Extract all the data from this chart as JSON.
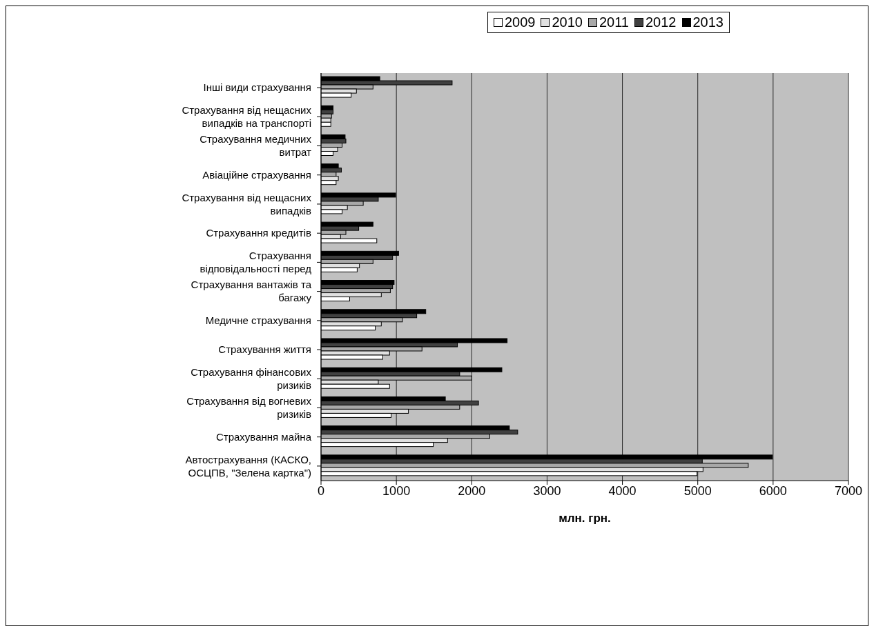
{
  "chart_data": {
    "type": "bar",
    "orientation": "horizontal",
    "xlabel": "млн. грн.",
    "categories": [
      "Інші види страхування",
      "Страхування від нещасних випадків на транспорті",
      "Страхування медичних витрат",
      "Авіаційне страхування",
      "Страхування від нещасних випадків",
      "Страхування кредитів",
      "Страхування відповідальності перед",
      "Страхування вантажів та багажу",
      "Медичне страхування",
      "Страхування життя",
      "Страхування фінансових ризиків",
      "Страхування від вогневих ризиків",
      "Страхування майна",
      "Автострахування (КАСКО, ОСЦПВ, \"Зелена картка\")"
    ],
    "series": [
      {
        "name": "2009",
        "color": "#ffffff",
        "values": [
          400,
          130,
          160,
          200,
          280,
          740,
          480,
          380,
          720,
          820,
          910,
          930,
          1490,
          4990
        ]
      },
      {
        "name": "2010",
        "color": "#e0e0e0",
        "values": [
          470,
          130,
          220,
          230,
          350,
          260,
          510,
          800,
          800,
          910,
          760,
          1160,
          1680,
          5070
        ]
      },
      {
        "name": "2011",
        "color": "#a8a8a8",
        "values": [
          690,
          140,
          280,
          200,
          560,
          330,
          690,
          920,
          1080,
          1340,
          2000,
          1840,
          2240,
          5670
        ]
      },
      {
        "name": "2012",
        "color": "#404040",
        "values": [
          1740,
          160,
          330,
          270,
          760,
          500,
          950,
          950,
          1270,
          1810,
          1840,
          2090,
          2610,
          5060
        ]
      },
      {
        "name": "2013",
        "color": "#000000",
        "values": [
          780,
          160,
          320,
          230,
          990,
          690,
          1030,
          970,
          1390,
          2470,
          2400,
          1650,
          2500,
          5990
        ]
      }
    ],
    "xlim": [
      0,
      7000
    ],
    "xticks": [
      0,
      1000,
      2000,
      3000,
      4000,
      5000,
      6000,
      7000
    ],
    "grid": "x",
    "legend": "top right"
  }
}
